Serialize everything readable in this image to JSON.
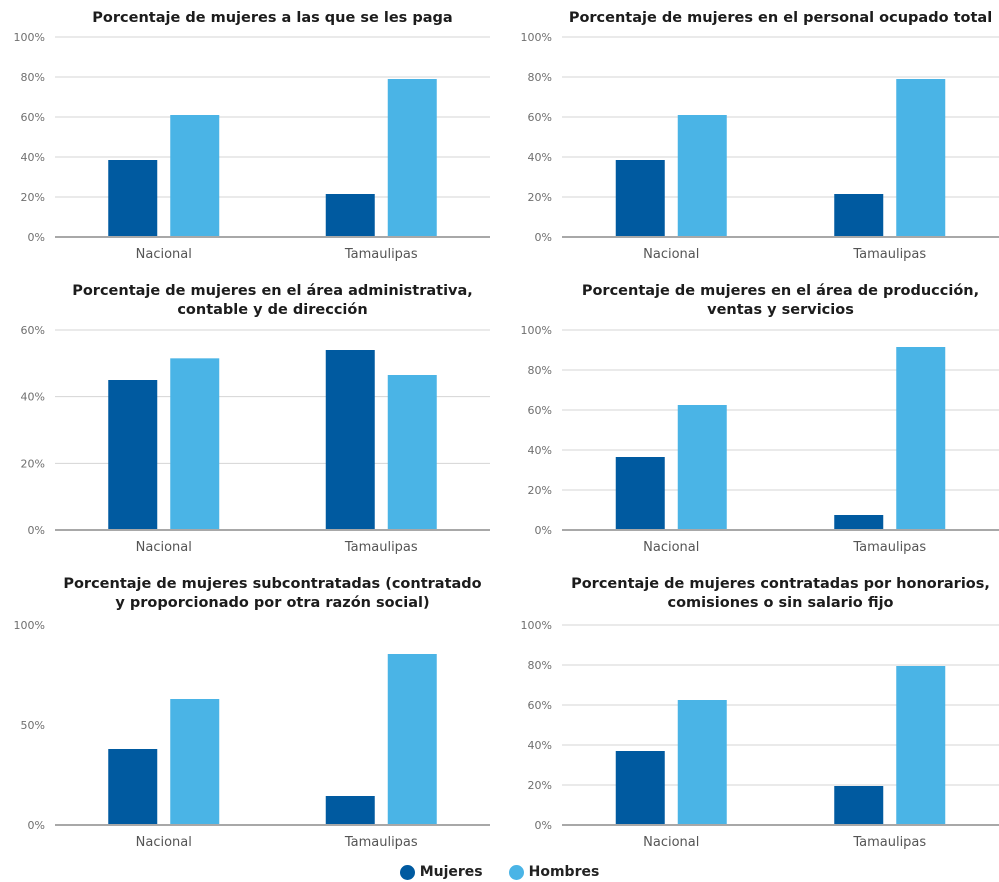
{
  "colors": {
    "mujeres": "#005aa0",
    "hombres": "#4ab4e6",
    "grid": "#d4d4d4",
    "axis": "#a8a8a8"
  },
  "legend": {
    "items": [
      {
        "label": "Mujeres",
        "color": "#005aa0"
      },
      {
        "label": "Hombres",
        "color": "#4ab4e6"
      }
    ]
  },
  "chart_data": [
    {
      "type": "bar",
      "title": [
        "Porcentaje de mujeres a las que se les paga"
      ],
      "categories": [
        "Nacional",
        "Tamaulipas"
      ],
      "series": [
        {
          "name": "Mujeres",
          "values": [
            38.5,
            21.5
          ]
        },
        {
          "name": "Hombres",
          "values": [
            61,
            79
          ]
        }
      ],
      "ylim": [
        0,
        100
      ],
      "yticks": [
        0,
        20,
        40,
        60,
        80,
        100
      ],
      "ytick_labels": [
        "0%",
        "20%",
        "40%",
        "60%",
        "80%",
        "100%"
      ],
      "grid": true
    },
    {
      "type": "bar",
      "title": [
        "Porcentaje de mujeres en el personal ocupado total"
      ],
      "categories": [
        "Nacional",
        "Tamaulipas"
      ],
      "series": [
        {
          "name": "Mujeres",
          "values": [
            38.5,
            21.5
          ]
        },
        {
          "name": "Hombres",
          "values": [
            61,
            79
          ]
        }
      ],
      "ylim": [
        0,
        100
      ],
      "yticks": [
        0,
        20,
        40,
        60,
        80,
        100
      ],
      "ytick_labels": [
        "0%",
        "20%",
        "40%",
        "60%",
        "80%",
        "100%"
      ],
      "grid": true
    },
    {
      "type": "bar",
      "title": [
        "Porcentaje de mujeres en el área administrativa,",
        "contable y de dirección"
      ],
      "categories": [
        "Nacional",
        "Tamaulipas"
      ],
      "series": [
        {
          "name": "Mujeres",
          "values": [
            45,
            54
          ]
        },
        {
          "name": "Hombres",
          "values": [
            51.5,
            46.5
          ]
        }
      ],
      "ylim": [
        0,
        60
      ],
      "yticks": [
        0,
        20,
        40,
        60
      ],
      "ytick_labels": [
        "0%",
        "20%",
        "40%",
        "60%"
      ],
      "grid": true
    },
    {
      "type": "bar",
      "title": [
        "Porcentaje de mujeres en el área de producción,",
        "ventas y servicios"
      ],
      "categories": [
        "Nacional",
        "Tamaulipas"
      ],
      "series": [
        {
          "name": "Mujeres",
          "values": [
            36.5,
            7.5
          ]
        },
        {
          "name": "Hombres",
          "values": [
            62.5,
            91.5
          ]
        }
      ],
      "ylim": [
        0,
        100
      ],
      "yticks": [
        0,
        20,
        40,
        60,
        80,
        100
      ],
      "ytick_labels": [
        "0%",
        "20%",
        "40%",
        "60%",
        "80%",
        "100%"
      ],
      "grid": true
    },
    {
      "type": "bar",
      "title": [
        "Porcentaje de mujeres subcontratadas (contratado",
        "y proporcionado por otra razón social)"
      ],
      "categories": [
        "Nacional",
        "Tamaulipas"
      ],
      "series": [
        {
          "name": "Mujeres",
          "values": [
            38,
            14.5
          ]
        },
        {
          "name": "Hombres",
          "values": [
            63,
            85.5
          ]
        }
      ],
      "ylim": [
        0,
        100
      ],
      "yticks": [
        0,
        50,
        100
      ],
      "ytick_labels": [
        "0%",
        "50%",
        "100%"
      ],
      "grid": false
    },
    {
      "type": "bar",
      "title": [
        "Porcentaje de mujeres contratadas por honorarios,",
        "comisiones o sin salario fijo"
      ],
      "categories": [
        "Nacional",
        "Tamaulipas"
      ],
      "series": [
        {
          "name": "Mujeres",
          "values": [
            37,
            19.5
          ]
        },
        {
          "name": "Hombres",
          "values": [
            62.5,
            79.5
          ]
        }
      ],
      "ylim": [
        0,
        100
      ],
      "yticks": [
        0,
        20,
        40,
        60,
        80,
        100
      ],
      "ytick_labels": [
        "0%",
        "20%",
        "40%",
        "60%",
        "80%",
        "100%"
      ],
      "grid": true
    }
  ]
}
